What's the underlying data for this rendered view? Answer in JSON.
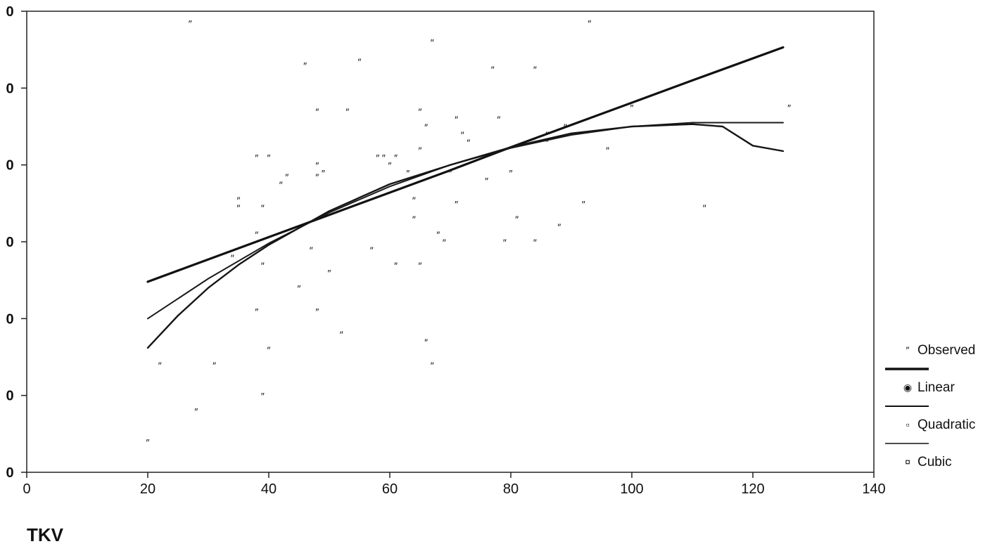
{
  "chart_data": {
    "type": "scatter",
    "title": "",
    "xlabel": "TKV",
    "ylabel": "",
    "xlim": [
      0,
      140
    ],
    "ylim": [
      0,
      6
    ],
    "x_ticks": [
      0,
      20,
      40,
      60,
      80,
      100,
      120,
      140
    ],
    "x_tick_labels": [
      "0",
      "20",
      "40",
      "60",
      "80",
      "100",
      "120",
      "140"
    ],
    "y_ticks": [
      0,
      1,
      2,
      3,
      4,
      5,
      6
    ],
    "y_tick_labels": [
      "0",
      "0",
      "0",
      "0",
      "0",
      "0",
      "0"
    ],
    "grid": false,
    "legend_position": "right",
    "series": [
      {
        "name": "Observed",
        "style": "points",
        "points": [
          [
            20,
            0.4
          ],
          [
            22,
            1.4
          ],
          [
            27,
            5.85
          ],
          [
            28,
            0.8
          ],
          [
            31,
            1.4
          ],
          [
            34,
            2.8
          ],
          [
            35,
            3.55
          ],
          [
            35,
            3.45
          ],
          [
            38,
            4.1
          ],
          [
            38,
            3.1
          ],
          [
            38,
            2.1
          ],
          [
            39,
            1.0
          ],
          [
            39,
            3.45
          ],
          [
            39,
            2.7
          ],
          [
            40,
            4.1
          ],
          [
            40,
            1.6
          ],
          [
            42,
            3.75
          ],
          [
            43,
            3.85
          ],
          [
            45,
            2.4
          ],
          [
            46,
            5.3
          ],
          [
            47,
            2.9
          ],
          [
            48,
            4.7
          ],
          [
            48,
            4.0
          ],
          [
            48,
            3.85
          ],
          [
            48,
            2.1
          ],
          [
            49,
            3.9
          ],
          [
            50,
            2.6
          ],
          [
            52,
            1.8
          ],
          [
            53,
            4.7
          ],
          [
            55,
            5.35
          ],
          [
            57,
            2.9
          ],
          [
            58,
            4.1
          ],
          [
            59,
            4.1
          ],
          [
            60,
            4.0
          ],
          [
            61,
            4.1
          ],
          [
            61,
            2.7
          ],
          [
            63,
            3.9
          ],
          [
            64,
            3.55
          ],
          [
            64,
            3.3
          ],
          [
            65,
            4.7
          ],
          [
            65,
            4.2
          ],
          [
            65,
            2.7
          ],
          [
            66,
            4.5
          ],
          [
            66,
            1.7
          ],
          [
            67,
            5.6
          ],
          [
            67,
            1.4
          ],
          [
            68,
            3.1
          ],
          [
            69,
            3.0
          ],
          [
            70,
            3.9
          ],
          [
            71,
            4.6
          ],
          [
            71,
            3.5
          ],
          [
            72,
            4.4
          ],
          [
            73,
            4.3
          ],
          [
            76,
            3.8
          ],
          [
            77,
            5.25
          ],
          [
            78,
            4.6
          ],
          [
            79,
            3.0
          ],
          [
            80,
            3.9
          ],
          [
            81,
            3.3
          ],
          [
            84,
            5.25
          ],
          [
            84,
            3.0
          ],
          [
            86,
            4.4
          ],
          [
            86,
            4.3
          ],
          [
            88,
            3.2
          ],
          [
            89,
            4.5
          ],
          [
            92,
            3.5
          ],
          [
            93,
            5.85
          ],
          [
            96,
            4.2
          ],
          [
            100,
            4.75
          ],
          [
            112,
            3.45
          ],
          [
            126,
            4.75
          ]
        ]
      },
      {
        "name": "Linear",
        "style": "line",
        "points": [
          [
            20,
            2.48
          ],
          [
            30,
            2.77
          ],
          [
            40,
            3.06
          ],
          [
            50,
            3.35
          ],
          [
            60,
            3.64
          ],
          [
            70,
            3.93
          ],
          [
            80,
            4.23
          ],
          [
            90,
            4.52
          ],
          [
            100,
            4.81
          ],
          [
            110,
            5.1
          ],
          [
            125,
            5.53
          ]
        ]
      },
      {
        "name": "Quadratic",
        "style": "line",
        "points": [
          [
            20,
            2.0
          ],
          [
            30,
            2.52
          ],
          [
            40,
            2.98
          ],
          [
            50,
            3.38
          ],
          [
            60,
            3.72
          ],
          [
            70,
            4.0
          ],
          [
            80,
            4.22
          ],
          [
            90,
            4.39
          ],
          [
            100,
            4.5
          ],
          [
            110,
            4.55
          ],
          [
            125,
            4.55
          ]
        ]
      },
      {
        "name": "Cubic",
        "style": "line",
        "points": [
          [
            20,
            1.62
          ],
          [
            25,
            2.04
          ],
          [
            30,
            2.4
          ],
          [
            35,
            2.7
          ],
          [
            40,
            2.96
          ],
          [
            50,
            3.4
          ],
          [
            60,
            3.75
          ],
          [
            70,
            4.0
          ],
          [
            80,
            4.23
          ],
          [
            90,
            4.41
          ],
          [
            100,
            4.5
          ],
          [
            110,
            4.53
          ],
          [
            115,
            4.5
          ],
          [
            120,
            4.25
          ],
          [
            125,
            4.18
          ]
        ]
      }
    ],
    "legend": [
      {
        "label": "Observed",
        "marker": "″"
      },
      {
        "label": "Linear",
        "marker": "◉"
      },
      {
        "label": "Quadratic",
        "marker": "▫"
      },
      {
        "label": "Cubic",
        "marker": "¤"
      }
    ]
  }
}
